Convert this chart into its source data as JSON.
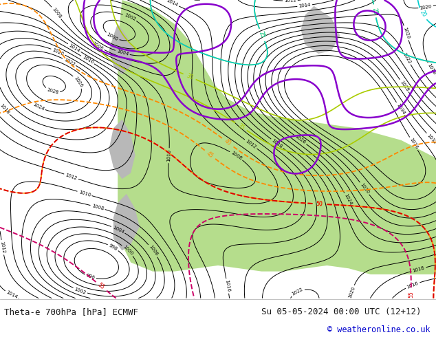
{
  "bottom_left_text": "Theta-e 700hPa [hPa] ECMWF",
  "bottom_right_text": "Su 05-05-2024 00:00 UTC (12+12)",
  "copyright_text": "© weatheronline.co.uk",
  "bg_color": "#ffffff",
  "map_bg": "#ffffff",
  "figsize": [
    6.34,
    4.9
  ],
  "dpi": 100,
  "bottom_bar_color": "#ffffff",
  "font_color": "#1a1a1a",
  "copyright_color": "#0000cc",
  "green_color": "#a8d878",
  "gray_color": "#b0b0b0",
  "isobar_color": "#000000",
  "theta_colors": {
    "yellow_green": "#aacc00",
    "cyan": "#00cccc",
    "light_green": "#44cc44",
    "orange": "#ff8800",
    "red": "#dd0000",
    "magenta": "#cc0066",
    "purple": "#8800cc",
    "blue": "#0055ff",
    "light_blue": "#55aaff"
  }
}
